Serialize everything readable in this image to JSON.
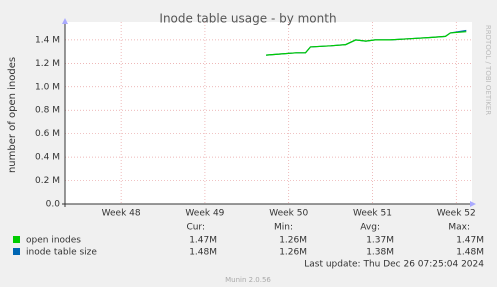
{
  "chart_data": {
    "type": "line",
    "title": "Inode table usage - by month",
    "y_label": "number of open inodes",
    "side_text": "RRDTOOL / TOBI OETIKER",
    "xlim": [
      47.33,
      52.14
    ],
    "xticks": [
      {
        "value": 48,
        "label": "Week 48"
      },
      {
        "value": 49,
        "label": "Week 49"
      },
      {
        "value": 50,
        "label": "Week 50"
      },
      {
        "value": 51,
        "label": "Week 51"
      },
      {
        "value": 52,
        "label": "Week 52"
      }
    ],
    "ylim": [
      0,
      1510000
    ],
    "yticks": [
      {
        "value": 0,
        "label": "0.0"
      },
      {
        "value": 200000,
        "label": "0.2 M"
      },
      {
        "value": 400000,
        "label": "0.4 M"
      },
      {
        "value": 600000,
        "label": "0.6 M"
      },
      {
        "value": 800000,
        "label": "0.8 M"
      },
      {
        "value": 1000000,
        "label": "1.0 M"
      },
      {
        "value": 1200000,
        "label": "1.2 M"
      },
      {
        "value": 1400000,
        "label": "1.4 M"
      }
    ],
    "grid": true,
    "x": [
      49.73,
      49.9,
      50.09,
      50.2,
      50.26,
      50.5,
      50.68,
      50.8,
      50.92,
      51.03,
      51.21,
      51.45,
      51.69,
      51.87,
      51.93,
      52.12
    ],
    "series": [
      {
        "name": "open inodes",
        "color": "#00cc00",
        "values": [
          1270000,
          1280000,
          1290000,
          1290000,
          1340000,
          1350000,
          1360000,
          1400000,
          1390000,
          1400000,
          1400000,
          1410000,
          1420000,
          1430000,
          1460000,
          1470000
        ]
      },
      {
        "name": "inode table size",
        "color": "#0066b3",
        "values": [
          1270000,
          1280000,
          1290000,
          1290000,
          1340000,
          1350000,
          1360000,
          1400000,
          1390000,
          1400000,
          1400000,
          1410000,
          1420000,
          1430000,
          1460000,
          1480000
        ]
      }
    ],
    "stats": {
      "headers": [
        "Cur:",
        "Min:",
        "Avg:",
        "Max:"
      ],
      "rows": [
        [
          "1.47M",
          "1.26M",
          "1.37M",
          "1.47M"
        ],
        [
          "1.48M",
          "1.26M",
          "1.38M",
          "1.48M"
        ]
      ]
    },
    "last_update": "Last update: Thu Dec 26 07:25:04 2024",
    "footer": "Munin 2.0.56"
  }
}
